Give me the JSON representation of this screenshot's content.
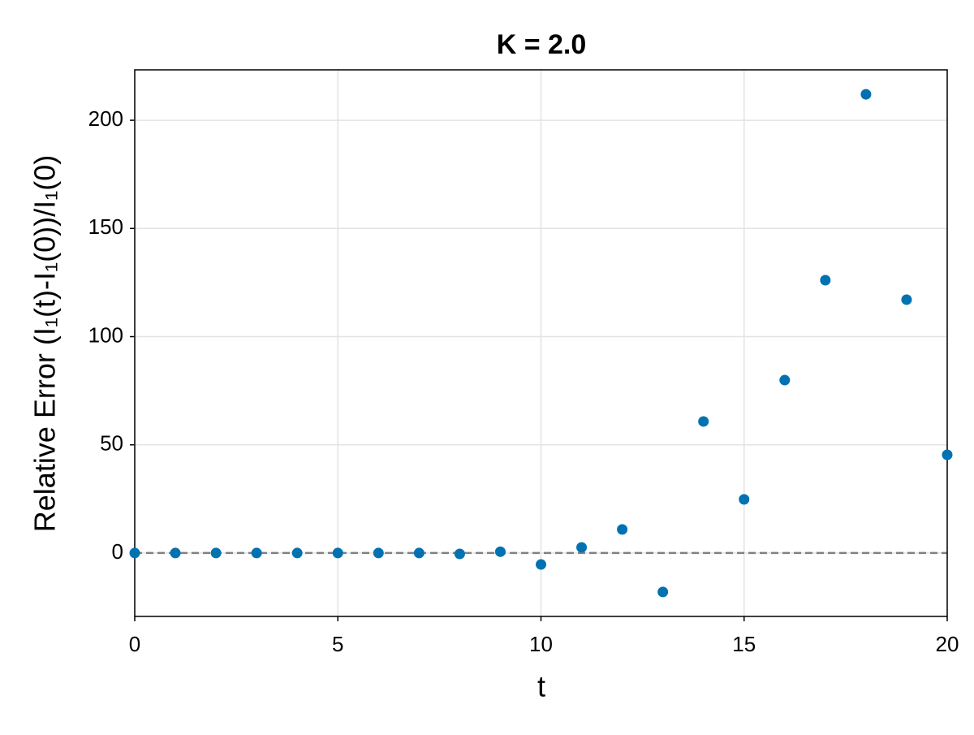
{
  "chart_data": {
    "type": "scatter",
    "title": "K = 2.0",
    "x_label": "t",
    "y_label": "Relative Error (I₁(t)-I₁(0))/I₁(0)",
    "x": [
      0,
      1,
      2,
      3,
      4,
      5,
      6,
      7,
      8,
      9,
      10,
      11,
      12,
      13,
      14,
      15,
      16,
      17,
      18,
      19,
      20
    ],
    "series": [
      {
        "color": "#0072b2",
        "values": [
          0,
          0,
          0,
          0,
          0,
          0,
          0,
          0,
          -0.4,
          0.6,
          -5.3,
          2.6,
          10.9,
          -18,
          60.8,
          24.8,
          79.9,
          126.1,
          212,
          117.1,
          45.4
        ]
      }
    ],
    "xlim": [
      0,
      20
    ],
    "xticks": [
      0,
      5,
      10,
      15,
      20
    ],
    "ylim": [
      -29.3,
      223.3
    ],
    "yticks": [
      0,
      50,
      100,
      150,
      200
    ],
    "grid": true,
    "hline": {
      "value": 0,
      "color": "#808080",
      "style": "dashed"
    }
  }
}
